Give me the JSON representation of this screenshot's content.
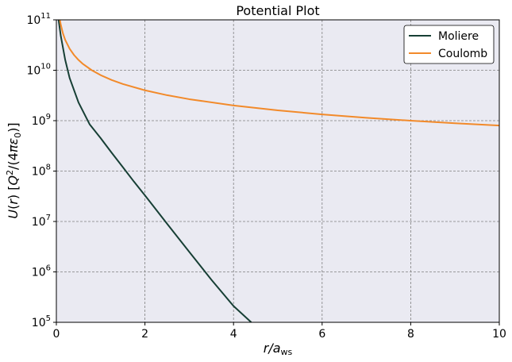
{
  "chart_data": {
    "type": "line",
    "title": "Potential Plot",
    "xlabel": "r/a_ws",
    "ylabel": "U(r)   [Q^2/(4πε_0)]",
    "x_scale": "linear",
    "y_scale": "log",
    "xlim": [
      0,
      10
    ],
    "ylim": [
      100000,
      100000000000
    ],
    "x_ticks": [
      {
        "value": 0,
        "label": "0"
      },
      {
        "value": 2,
        "label": "2"
      },
      {
        "value": 4,
        "label": "4"
      },
      {
        "value": 6,
        "label": "6"
      },
      {
        "value": 8,
        "label": "8"
      },
      {
        "value": 10,
        "label": "10"
      }
    ],
    "y_ticks": [
      {
        "value": 100000,
        "base": "10",
        "exp": "5"
      },
      {
        "value": 1000000,
        "base": "10",
        "exp": "6"
      },
      {
        "value": 10000000,
        "base": "10",
        "exp": "7"
      },
      {
        "value": 100000000,
        "base": "10",
        "exp": "8"
      },
      {
        "value": 1000000000,
        "base": "10",
        "exp": "9"
      },
      {
        "value": 10000000000,
        "base": "10",
        "exp": "10"
      },
      {
        "value": 100000000000,
        "base": "10",
        "exp": "11"
      }
    ],
    "grid": true,
    "legend_position": "top-right",
    "background_color": "#eaeaf2",
    "series": [
      {
        "name": "Moliere",
        "color": "#173f35",
        "points": [
          [
            0.05,
            100000000000
          ],
          [
            0.1,
            48000000000
          ],
          [
            0.2,
            16000000000
          ],
          [
            0.3,
            7000000000
          ],
          [
            0.5,
            2300000000
          ],
          [
            0.75,
            850000000
          ],
          [
            1.0,
            450000000
          ],
          [
            1.25,
            230000000
          ],
          [
            1.5,
            120000000
          ],
          [
            1.75,
            62000000
          ],
          [
            2.0,
            33000000
          ],
          [
            2.5,
            9000000
          ],
          [
            3.0,
            2500000
          ],
          [
            3.5,
            700000
          ],
          [
            4.0,
            210000
          ],
          [
            4.4,
            100000
          ]
        ]
      },
      {
        "name": "Coulomb",
        "color": "#f28a2a",
        "points": [
          [
            0.08,
            100000000000
          ],
          [
            0.1,
            80000000000
          ],
          [
            0.15,
            53333333333
          ],
          [
            0.2,
            40000000000
          ],
          [
            0.3,
            26666666667
          ],
          [
            0.4,
            20000000000
          ],
          [
            0.5,
            16000000000
          ],
          [
            0.6,
            13333333333
          ],
          [
            0.8,
            10000000000
          ],
          [
            1.0,
            8000000000
          ],
          [
            1.25,
            6400000000
          ],
          [
            1.5,
            5333333333
          ],
          [
            2.0,
            4000000000
          ],
          [
            2.5,
            3200000000
          ],
          [
            3.0,
            2666666667
          ],
          [
            4.0,
            2000000000
          ],
          [
            5.0,
            1600000000
          ],
          [
            6.0,
            1333333333
          ],
          [
            7.0,
            1142857143
          ],
          [
            8.0,
            1000000000
          ],
          [
            9.0,
            888888889
          ],
          [
            10.0,
            800000000
          ]
        ]
      }
    ]
  }
}
